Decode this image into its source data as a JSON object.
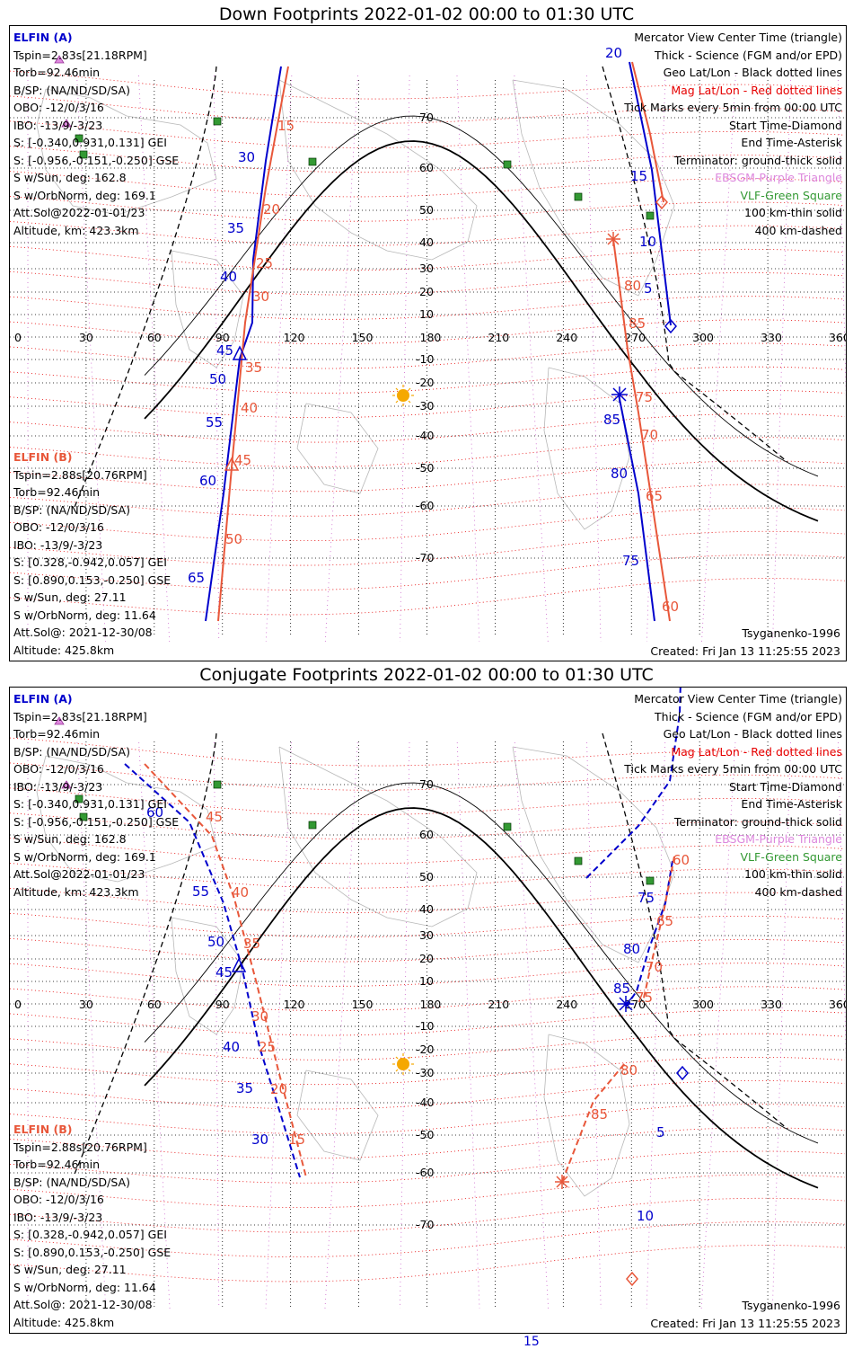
{
  "panels": [
    {
      "id": "down",
      "title": "Down Footprints 2022-01-02 00:00 to 01:30 UTC",
      "elfin_a": {
        "header": "ELFIN (A)",
        "lines": [
          "Tspin=2.83s[21.18RPM]",
          "Torb=92.46min",
          "B/SP: (NA/ND/SD/SA)",
          "OBO: -12/0/3/16",
          "IBO: -13/9/-3/23",
          "S: [-0.340,0.931,0.131] GEI",
          "S: [-0.956,-0.151,-0.250] GSE",
          "S w/Sun, deg: 162.8",
          "S w/OrbNorm, deg: 169.1",
          "Att.Sol@2022-01-01/23",
          "Altitude, km: 423.3km"
        ]
      },
      "elfin_b": {
        "header": "ELFIN (B)",
        "lines": [
          "Tspin=2.88s[20.76RPM]",
          "Torb=92.46min",
          "B/SP: (NA/ND/SD/SA)",
          "OBO: -12/0/3/16",
          "IBO: -13/9/-3/23",
          "S: [0.328,-0.942,0.057] GEI",
          "S: [0.890,0.153,-0.250] GSE",
          "S w/Sun, deg: 27.11",
          "S w/OrbNorm, deg: 11.64",
          "Att.Sol@: 2021-12-30/08",
          "Altitude: 425.8km"
        ]
      },
      "model": "Tsyganenko-1996",
      "created": "Created: Fri Jan 13 11:25:55 2023"
    },
    {
      "id": "conjugate",
      "title": "Conjugate Footprints 2022-01-02 00:00 to 01:30 UTC",
      "elfin_a": {
        "header": "ELFIN (A)",
        "lines": [
          "Tspin=2.83s[21.18RPM]",
          "Torb=92.46min",
          "B/SP: (NA/ND/SD/SA)",
          "OBO: -12/0/3/16",
          "IBO: -13/9/-3/23",
          "S: [-0.340,0.931,0.131] GEI",
          "S: [-0.956,-0.151,-0.250] GSE",
          "S w/Sun, deg: 162.8",
          "S w/OrbNorm, deg: 169.1",
          "Att.Sol@2022-01-01/23",
          "Altitude, km: 423.3km"
        ]
      },
      "elfin_b": {
        "header": "ELFIN (B)",
        "lines": [
          "Tspin=2.88s[20.76RPM]",
          "Torb=92.46min",
          "B/SP: (NA/ND/SD/SA)",
          "OBO: -12/0/3/16",
          "IBO: -13/9/-3/23",
          "S: [0.328,-0.942,0.057] GEI",
          "S: [0.890,0.153,-0.250] GSE",
          "S w/Sun, deg: 27.11",
          "S w/OrbNorm, deg: 11.64",
          "Att.Sol@: 2021-12-30/08",
          "Altitude: 425.8km"
        ]
      },
      "model": "Tsyganenko-1996",
      "created": "Created: Fri Jan 13 11:25:55 2023"
    }
  ],
  "legend": {
    "view": "Mercator View Center Time (triangle)",
    "science": "Thick - Science (FGM and/or EPD)",
    "geo": "Geo Lat/Lon - Black dotted lines",
    "mag": "Mag Lat/Lon - Red dotted lines",
    "ticks": "Tick Marks every 5min from 00:00 UTC",
    "start": "Start Time-Diamond",
    "end": "End Time-Asterisk",
    "terminator": "Terminator: ground-thick solid",
    "ebsgm": "EBSGM-Purple Triangle",
    "vlf": "VLF-Green Square",
    "km100": "100 km-thin solid",
    "km400": "400 km-dashed"
  },
  "map_labels": {
    "longitudes": [
      "0",
      "30",
      "60",
      "90",
      "120",
      "150",
      "180",
      "210",
      "240",
      "270",
      "300",
      "330",
      "360"
    ],
    "latitudes": [
      "70",
      "60",
      "50",
      "40",
      "30",
      "20",
      "10",
      "-10",
      "-20",
      "-30",
      "-40",
      "-50",
      "-60",
      "-70"
    ]
  },
  "track_labels": {
    "down_a": [
      "20",
      "15",
      "10",
      "5",
      "30",
      "35",
      "40",
      "45",
      "50",
      "55",
      "60",
      "65",
      "85",
      "80",
      "75"
    ],
    "down_b": [
      "15",
      "20",
      "25",
      "30",
      "35",
      "40",
      "45",
      "50",
      "80",
      "85",
      "75",
      "70",
      "65",
      "60"
    ],
    "conj_a": [
      "60",
      "55",
      "50",
      "45",
      "40",
      "35",
      "30",
      "75",
      "80",
      "85",
      "5",
      "10"
    ],
    "conj_b": [
      "45",
      "40",
      "35",
      "30",
      "25",
      "20",
      "15",
      "60",
      "65",
      "70",
      "75",
      "80",
      "85"
    ]
  },
  "stray_label": "15",
  "colors": {
    "elfin_a": "#0000cc",
    "elfin_b": "#e8573a",
    "mag_grid": "#e60000",
    "geo_grid": "#000000",
    "ebsgm": "#dd88dd",
    "vlf": "#339933",
    "sun": "#f5a800"
  }
}
